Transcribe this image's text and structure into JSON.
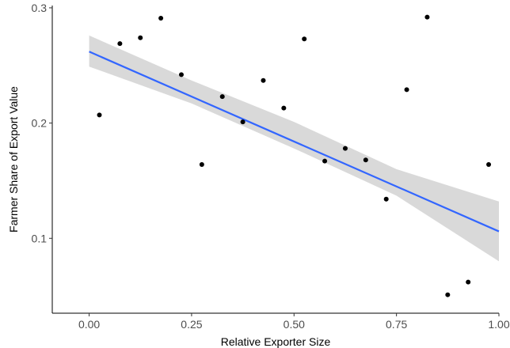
{
  "chart_data": {
    "type": "scatter",
    "title": "",
    "xlabel": "Relative Exporter Size",
    "ylabel": "Farmer Share of Export Value",
    "xlim": [
      -0.09,
      1.0
    ],
    "ylim": [
      0.035,
      0.302
    ],
    "x_ticks": [
      0.0,
      0.25,
      0.5,
      0.75,
      1.0
    ],
    "x_tick_labels": [
      "0.00",
      "0.25",
      "0.50",
      "0.75",
      "1.00"
    ],
    "y_ticks": [
      0.1,
      0.2,
      0.3
    ],
    "y_tick_labels": [
      "0.1",
      "0.2",
      "0.3"
    ],
    "grid": false,
    "points": [
      {
        "x": 0.025,
        "y": 0.207
      },
      {
        "x": 0.075,
        "y": 0.269
      },
      {
        "x": 0.125,
        "y": 0.274
      },
      {
        "x": 0.175,
        "y": 0.291
      },
      {
        "x": 0.225,
        "y": 0.242
      },
      {
        "x": 0.275,
        "y": 0.164
      },
      {
        "x": 0.325,
        "y": 0.223
      },
      {
        "x": 0.375,
        "y": 0.201
      },
      {
        "x": 0.425,
        "y": 0.237
      },
      {
        "x": 0.475,
        "y": 0.213
      },
      {
        "x": 0.525,
        "y": 0.273
      },
      {
        "x": 0.575,
        "y": 0.167
      },
      {
        "x": 0.625,
        "y": 0.178
      },
      {
        "x": 0.675,
        "y": 0.168
      },
      {
        "x": 0.725,
        "y": 0.134
      },
      {
        "x": 0.775,
        "y": 0.229
      },
      {
        "x": 0.825,
        "y": 0.292
      },
      {
        "x": 0.875,
        "y": 0.051
      },
      {
        "x": 0.925,
        "y": 0.062
      },
      {
        "x": 0.975,
        "y": 0.164
      }
    ],
    "fit_line": {
      "x": [
        0.0,
        1.0
      ],
      "y": [
        0.262,
        0.106
      ],
      "color": "#3366FF"
    },
    "confidence_band": {
      "x": [
        0.0,
        0.25,
        0.5,
        0.75,
        1.0
      ],
      "lower": [
        0.249,
        0.217,
        0.178,
        0.137,
        0.08
      ],
      "upper": [
        0.276,
        0.237,
        0.201,
        0.16,
        0.132
      ],
      "color": "#D9D9D9"
    },
    "point_color": "#000000"
  }
}
